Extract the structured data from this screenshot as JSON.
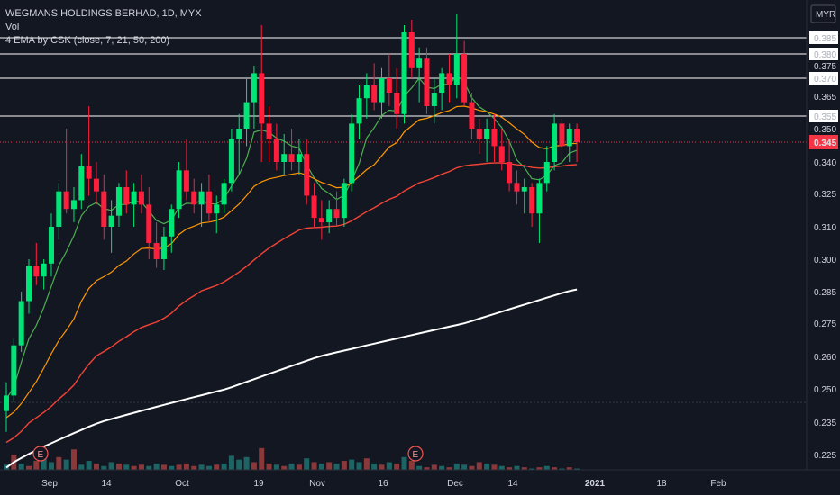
{
  "chart_data": {
    "type": "candlestick",
    "title": "WEGMANS HOLDINGS BERHAD, 1D, MYX",
    "indicator_labels": [
      "Vol",
      "4 EMA by CSK (close, 7, 21, 50, 200)"
    ],
    "currency": "MYR",
    "last_price": "0.345",
    "price_scale": {
      "ticks": [
        "0.385",
        "0.380",
        "0.375",
        "0.370",
        "0.365",
        "0.355",
        "0.350",
        "0.345",
        "0.340",
        "0.325",
        "0.310",
        "0.300",
        "0.285",
        "0.275",
        "0.260",
        "0.250",
        "0.235",
        "0.225"
      ]
    },
    "x_ticks": [
      "Sep",
      "14",
      "Oct",
      "19",
      "Nov",
      "16",
      "Dec",
      "14",
      "2021",
      "18",
      "Feb"
    ],
    "horizontal_levels": [
      0.385,
      0.38,
      0.37,
      0.355
    ],
    "earnings_markers": [
      "E",
      "E"
    ],
    "ema_names": [
      "EMA 7",
      "EMA 21",
      "EMA 50",
      "EMA 200"
    ],
    "colors": {
      "background": "#131722",
      "up": "#00e676",
      "down": "#ff1f3d",
      "vol_up": "#26a69a",
      "vol_down": "#ef5350",
      "ema7": "#4caf50",
      "ema21": "#ff9800",
      "ema50": "#f44336",
      "ema200": "#ffffff",
      "grid": "#2a2e39",
      "axis_text": "#d1d4dc",
      "last_price_bg": "#f23645"
    },
    "candles": [
      [
        0.24,
        0.252,
        0.232,
        0.247
      ],
      [
        0.247,
        0.268,
        0.244,
        0.265
      ],
      [
        0.265,
        0.285,
        0.262,
        0.282
      ],
      [
        0.282,
        0.3,
        0.278,
        0.297
      ],
      [
        0.297,
        0.305,
        0.288,
        0.292
      ],
      [
        0.292,
        0.3,
        0.286,
        0.298
      ],
      [
        0.298,
        0.316,
        0.292,
        0.31
      ],
      [
        0.31,
        0.33,
        0.306,
        0.326
      ],
      [
        0.326,
        0.35,
        0.316,
        0.318
      ],
      [
        0.318,
        0.328,
        0.312,
        0.322
      ],
      [
        0.322,
        0.342,
        0.318,
        0.338
      ],
      [
        0.338,
        0.36,
        0.324,
        0.332
      ],
      [
        0.332,
        0.34,
        0.32,
        0.326
      ],
      [
        0.326,
        0.334,
        0.306,
        0.31
      ],
      [
        0.31,
        0.322,
        0.302,
        0.315
      ],
      [
        0.315,
        0.33,
        0.31,
        0.328
      ],
      [
        0.328,
        0.336,
        0.316,
        0.32
      ],
      [
        0.32,
        0.33,
        0.31,
        0.326
      ],
      [
        0.326,
        0.334,
        0.316,
        0.32
      ],
      [
        0.32,
        0.328,
        0.3,
        0.305
      ],
      [
        0.305,
        0.312,
        0.296,
        0.3
      ],
      [
        0.3,
        0.31,
        0.295,
        0.307
      ],
      [
        0.307,
        0.32,
        0.302,
        0.318
      ],
      [
        0.318,
        0.34,
        0.314,
        0.336
      ],
      [
        0.336,
        0.346,
        0.322,
        0.326
      ],
      [
        0.326,
        0.332,
        0.316,
        0.32
      ],
      [
        0.32,
        0.33,
        0.31,
        0.326
      ],
      [
        0.326,
        0.334,
        0.312,
        0.316
      ],
      [
        0.316,
        0.324,
        0.308,
        0.32
      ],
      [
        0.32,
        0.332,
        0.316,
        0.33
      ],
      [
        0.33,
        0.35,
        0.326,
        0.346
      ],
      [
        0.346,
        0.356,
        0.334,
        0.35
      ],
      [
        0.35,
        0.37,
        0.344,
        0.362
      ],
      [
        0.362,
        0.375,
        0.35,
        0.372
      ],
      [
        0.372,
        0.392,
        0.34,
        0.352
      ],
      [
        0.352,
        0.36,
        0.34,
        0.346
      ],
      [
        0.346,
        0.352,
        0.336,
        0.34
      ],
      [
        0.34,
        0.348,
        0.334,
        0.342
      ],
      [
        0.342,
        0.35,
        0.336,
        0.34
      ],
      [
        0.34,
        0.346,
        0.334,
        0.342
      ],
      [
        0.342,
        0.346,
        0.32,
        0.324
      ],
      [
        0.324,
        0.33,
        0.31,
        0.314
      ],
      [
        0.314,
        0.322,
        0.306,
        0.312
      ],
      [
        0.312,
        0.322,
        0.308,
        0.318
      ],
      [
        0.318,
        0.326,
        0.31,
        0.314
      ],
      [
        0.314,
        0.332,
        0.31,
        0.33
      ],
      [
        0.33,
        0.356,
        0.326,
        0.352
      ],
      [
        0.352,
        0.368,
        0.346,
        0.364
      ],
      [
        0.364,
        0.372,
        0.354,
        0.368
      ],
      [
        0.368,
        0.376,
        0.358,
        0.362
      ],
      [
        0.362,
        0.374,
        0.354,
        0.37
      ],
      [
        0.37,
        0.38,
        0.36,
        0.366
      ],
      [
        0.366,
        0.374,
        0.35,
        0.356
      ],
      [
        0.356,
        0.392,
        0.352,
        0.388
      ],
      [
        0.388,
        0.395,
        0.37,
        0.374
      ],
      [
        0.374,
        0.382,
        0.362,
        0.378
      ],
      [
        0.378,
        0.382,
        0.356,
        0.36
      ],
      [
        0.36,
        0.37,
        0.352,
        0.366
      ],
      [
        0.366,
        0.374,
        0.358,
        0.372
      ],
      [
        0.372,
        0.38,
        0.362,
        0.368
      ],
      [
        0.368,
        0.398,
        0.364,
        0.38
      ],
      [
        0.38,
        0.384,
        0.36,
        0.362
      ],
      [
        0.362,
        0.366,
        0.346,
        0.35
      ],
      [
        0.35,
        0.354,
        0.342,
        0.346
      ],
      [
        0.346,
        0.354,
        0.34,
        0.35
      ],
      [
        0.35,
        0.356,
        0.34,
        0.344
      ],
      [
        0.344,
        0.35,
        0.336,
        0.34
      ],
      [
        0.34,
        0.346,
        0.326,
        0.33
      ],
      [
        0.33,
        0.336,
        0.32,
        0.326
      ],
      [
        0.326,
        0.332,
        0.316,
        0.328
      ],
      [
        0.328,
        0.33,
        0.31,
        0.316
      ],
      [
        0.316,
        0.332,
        0.305,
        0.33
      ],
      [
        0.33,
        0.344,
        0.326,
        0.34
      ],
      [
        0.34,
        0.356,
        0.336,
        0.352
      ],
      [
        0.352,
        0.354,
        0.34,
        0.344
      ],
      [
        0.344,
        0.352,
        0.34,
        0.35
      ],
      [
        0.35,
        0.352,
        0.34,
        0.345
      ]
    ],
    "volumes": [
      [
        0.04,
        1
      ],
      [
        0.12,
        0
      ],
      [
        0.05,
        1
      ],
      [
        0.03,
        0
      ],
      [
        0.07,
        0
      ],
      [
        0.17,
        1
      ],
      [
        0.06,
        1
      ],
      [
        0.1,
        0
      ],
      [
        0.08,
        1
      ],
      [
        0.16,
        0
      ],
      [
        0.04,
        1
      ],
      [
        0.07,
        1
      ],
      [
        0.05,
        0
      ],
      [
        0.03,
        1
      ],
      [
        0.06,
        1
      ],
      [
        0.05,
        0
      ],
      [
        0.04,
        1
      ],
      [
        0.03,
        0
      ],
      [
        0.04,
        0
      ],
      [
        0.03,
        1
      ],
      [
        0.05,
        1
      ],
      [
        0.04,
        0
      ],
      [
        0.03,
        1
      ],
      [
        0.04,
        0
      ],
      [
        0.05,
        0
      ],
      [
        0.03,
        0
      ],
      [
        0.04,
        1
      ],
      [
        0.03,
        1
      ],
      [
        0.04,
        0
      ],
      [
        0.05,
        1
      ],
      [
        0.11,
        1
      ],
      [
        0.08,
        1
      ],
      [
        0.1,
        1
      ],
      [
        0.06,
        0
      ],
      [
        0.17,
        0
      ],
      [
        0.05,
        0
      ],
      [
        0.04,
        1
      ],
      [
        0.03,
        0
      ],
      [
        0.05,
        1
      ],
      [
        0.04,
        0
      ],
      [
        0.09,
        1
      ],
      [
        0.06,
        0
      ],
      [
        0.05,
        1
      ],
      [
        0.06,
        0
      ],
      [
        0.05,
        1
      ],
      [
        0.07,
        0
      ],
      [
        0.08,
        1
      ],
      [
        0.06,
        1
      ],
      [
        0.09,
        0
      ],
      [
        0.05,
        1
      ],
      [
        0.04,
        0
      ],
      [
        0.06,
        1
      ],
      [
        0.05,
        0
      ],
      [
        0.1,
        1
      ],
      [
        0.07,
        0
      ],
      [
        0.03,
        1
      ],
      [
        0.02,
        0
      ],
      [
        0.04,
        0
      ],
      [
        0.03,
        1
      ],
      [
        0.02,
        0
      ],
      [
        0.05,
        1
      ],
      [
        0.04,
        1
      ],
      [
        0.03,
        0
      ],
      [
        0.06,
        0
      ],
      [
        0.05,
        1
      ],
      [
        0.04,
        0
      ],
      [
        0.03,
        1
      ],
      [
        0.02,
        0
      ],
      [
        0.03,
        1
      ],
      [
        0.02,
        0
      ],
      [
        0.01,
        1
      ],
      [
        0.02,
        0
      ],
      [
        0.03,
        1
      ],
      [
        0.02,
        0
      ],
      [
        0.01,
        1
      ],
      [
        0.02,
        0
      ],
      [
        0.01,
        1
      ]
    ]
  }
}
